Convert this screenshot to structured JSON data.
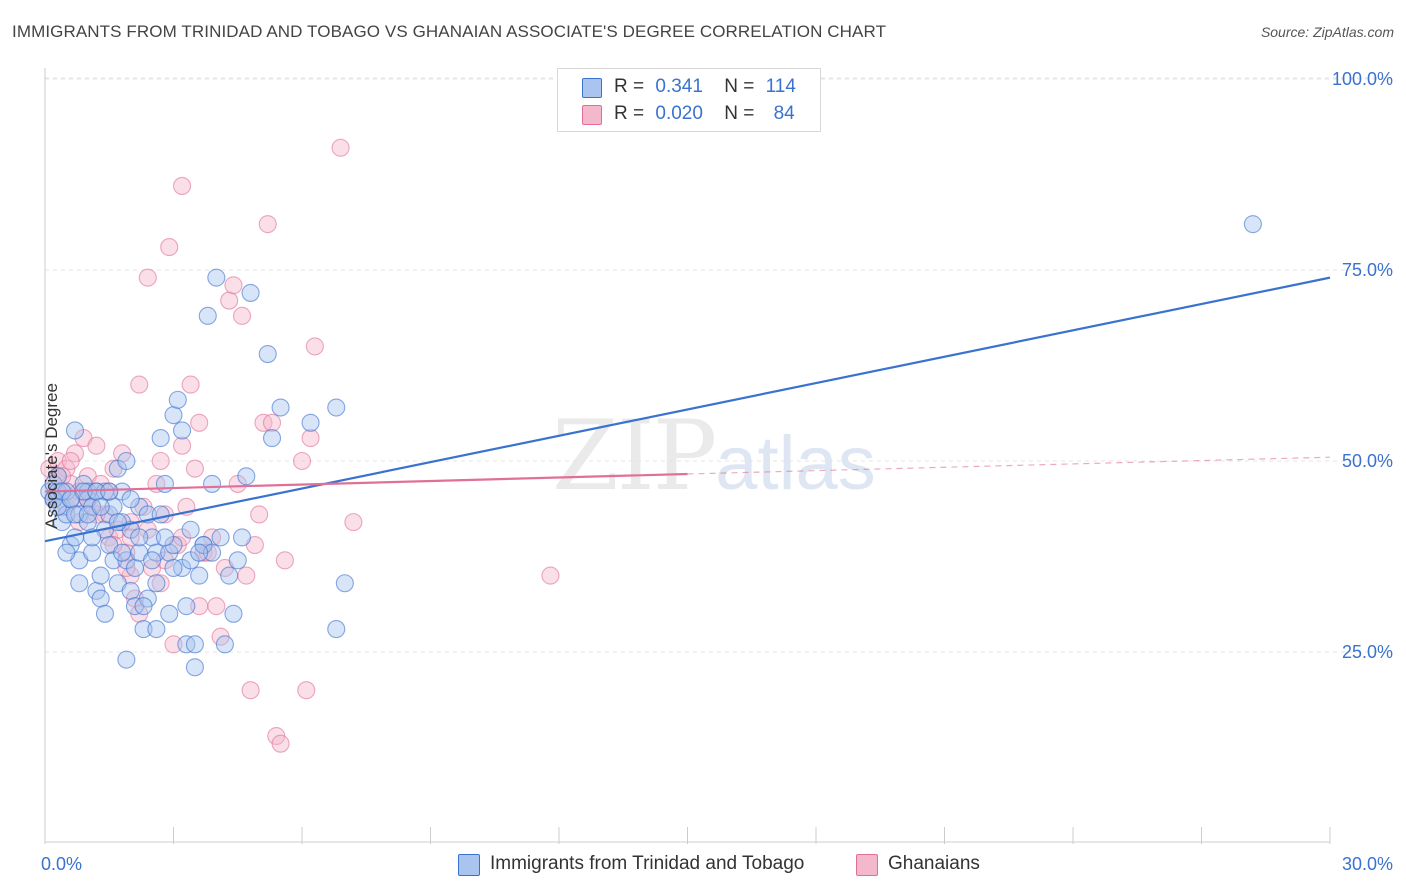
{
  "title": "IMMIGRANTS FROM TRINIDAD AND TOBAGO VS GHANAIAN ASSOCIATE'S DEGREE CORRELATION CHART",
  "source": "Source: ZipAtlas.com",
  "watermark": {
    "zip": "ZIP",
    "atlas": "atlas"
  },
  "colors": {
    "blue": "#3a72d0",
    "blue_fill": "#a9c4ee",
    "pink": "#e07098",
    "pink_fill": "#f4b8cc",
    "grid": "#e4e4e4"
  },
  "legend": {
    "rows": [
      {
        "r_label": "R =",
        "r_value": "0.341",
        "n_label": "N =",
        "n_value": "114"
      },
      {
        "r_label": "R =",
        "r_value": "0.020",
        "n_label": "N =",
        "n_value": "84"
      }
    ]
  },
  "bottom_legend": [
    "Immigrants from Trinidad and Tobago",
    "Ghanaians"
  ],
  "chart_data": {
    "type": "scatter",
    "title": "IMMIGRANTS FROM TRINIDAD AND TOBAGO VS GHANAIAN ASSOCIATE'S DEGREE CORRELATION CHART",
    "xlabel": "",
    "ylabel": "Associate's Degree",
    "xlim": [
      0,
      30
    ],
    "ylim": [
      0,
      105
    ],
    "x_tick_labels": [
      "0.0%",
      "30.0%"
    ],
    "y_ticks": [
      25,
      50,
      75,
      100
    ],
    "y_tick_labels": [
      "25.0%",
      "50.0%",
      "75.0%",
      "100.0%"
    ],
    "grid": true,
    "legend_position": "top-center",
    "series": [
      {
        "name": "Immigrants from Trinidad and Tobago",
        "color": "#3a72d0",
        "R": 0.341,
        "N": 114,
        "trend": [
          [
            0,
            39.5
          ],
          [
            30,
            74
          ]
        ],
        "points": [
          [
            0.1,
            46
          ],
          [
            0.2,
            45
          ],
          [
            0.2,
            47
          ],
          [
            0.3,
            46
          ],
          [
            0.3,
            48
          ],
          [
            0.4,
            44
          ],
          [
            0.4,
            42
          ],
          [
            0.5,
            46
          ],
          [
            0.5,
            43
          ],
          [
            0.6,
            45
          ],
          [
            0.6,
            39
          ],
          [
            0.7,
            54
          ],
          [
            0.7,
            40
          ],
          [
            0.8,
            43
          ],
          [
            0.8,
            37
          ],
          [
            0.8,
            34
          ],
          [
            0.9,
            47
          ],
          [
            1.0,
            46
          ],
          [
            1.0,
            45
          ],
          [
            1.0,
            42
          ],
          [
            1.1,
            44
          ],
          [
            1.1,
            38
          ],
          [
            1.2,
            33
          ],
          [
            1.2,
            46
          ],
          [
            1.3,
            35
          ],
          [
            1.3,
            32
          ],
          [
            1.4,
            46
          ],
          [
            1.4,
            41
          ],
          [
            1.5,
            43
          ],
          [
            1.5,
            39
          ],
          [
            1.6,
            44
          ],
          [
            1.6,
            37
          ],
          [
            1.7,
            49
          ],
          [
            1.7,
            34
          ],
          [
            1.8,
            46
          ],
          [
            1.8,
            42
          ],
          [
            1.9,
            50
          ],
          [
            1.9,
            37
          ],
          [
            1.9,
            24
          ],
          [
            2.0,
            33
          ],
          [
            2.0,
            41
          ],
          [
            2.1,
            36
          ],
          [
            2.1,
            31
          ],
          [
            2.2,
            38
          ],
          [
            2.2,
            44
          ],
          [
            2.3,
            28
          ],
          [
            2.4,
            43
          ],
          [
            2.4,
            32
          ],
          [
            2.5,
            40
          ],
          [
            2.6,
            38
          ],
          [
            2.6,
            28
          ],
          [
            2.7,
            43
          ],
          [
            2.7,
            53
          ],
          [
            2.8,
            47
          ],
          [
            2.9,
            38
          ],
          [
            2.9,
            30
          ],
          [
            3.0,
            39
          ],
          [
            3.0,
            56
          ],
          [
            3.1,
            58
          ],
          [
            3.2,
            54
          ],
          [
            3.2,
            36
          ],
          [
            3.3,
            26
          ],
          [
            3.3,
            31
          ],
          [
            3.4,
            41
          ],
          [
            3.5,
            26
          ],
          [
            3.5,
            23
          ],
          [
            3.6,
            35
          ],
          [
            3.7,
            39
          ],
          [
            3.7,
            39
          ],
          [
            3.8,
            69
          ],
          [
            3.9,
            47
          ],
          [
            3.9,
            38
          ],
          [
            4.0,
            74
          ],
          [
            4.1,
            40
          ],
          [
            4.2,
            26
          ],
          [
            4.3,
            35
          ],
          [
            4.4,
            30
          ],
          [
            4.5,
            37
          ],
          [
            4.6,
            40
          ],
          [
            4.7,
            48
          ],
          [
            4.8,
            72
          ],
          [
            5.2,
            64
          ],
          [
            5.3,
            53
          ],
          [
            5.5,
            57
          ],
          [
            6.2,
            55
          ],
          [
            6.8,
            57
          ],
          [
            6.8,
            28
          ],
          [
            7.0,
            34
          ],
          [
            28.2,
            81
          ],
          [
            0.2,
            45
          ],
          [
            0.3,
            44
          ],
          [
            0.4,
            46
          ],
          [
            0.6,
            45
          ],
          [
            0.7,
            43
          ],
          [
            0.9,
            46
          ],
          [
            1.0,
            43
          ],
          [
            1.2,
            46
          ],
          [
            1.3,
            44
          ],
          [
            1.5,
            46
          ],
          [
            1.7,
            42
          ],
          [
            1.8,
            38
          ],
          [
            2.0,
            45
          ],
          [
            2.2,
            40
          ],
          [
            2.3,
            31
          ],
          [
            2.5,
            37
          ],
          [
            2.8,
            40
          ],
          [
            3.0,
            36
          ],
          [
            3.4,
            37
          ],
          [
            3.6,
            38
          ],
          [
            1.1,
            40
          ],
          [
            1.4,
            30
          ],
          [
            2.6,
            34
          ],
          [
            0.5,
            38
          ]
        ]
      },
      {
        "name": "Ghanaians",
        "color": "#e07098",
        "R": 0.02,
        "N": 84,
        "trend": [
          [
            0,
            46
          ],
          [
            15,
            48.3
          ]
        ],
        "trend_dashed": [
          [
            15,
            48.3
          ],
          [
            30,
            50.5
          ]
        ],
        "points": [
          [
            0.1,
            49
          ],
          [
            0.2,
            47
          ],
          [
            0.2,
            45
          ],
          [
            0.3,
            48
          ],
          [
            0.3,
            50
          ],
          [
            0.4,
            46
          ],
          [
            0.5,
            49
          ],
          [
            0.5,
            44
          ],
          [
            0.6,
            47
          ],
          [
            0.7,
            45
          ],
          [
            0.7,
            51
          ],
          [
            0.8,
            42
          ],
          [
            0.9,
            53
          ],
          [
            1.0,
            48
          ],
          [
            1.0,
            45
          ],
          [
            1.1,
            44
          ],
          [
            1.2,
            52
          ],
          [
            1.3,
            47
          ],
          [
            1.4,
            43
          ],
          [
            1.5,
            40
          ],
          [
            1.5,
            46
          ],
          [
            1.6,
            49
          ],
          [
            1.7,
            41
          ],
          [
            1.8,
            51
          ],
          [
            1.9,
            38
          ],
          [
            2.0,
            42
          ],
          [
            2.0,
            35
          ],
          [
            2.1,
            32
          ],
          [
            2.2,
            30
          ],
          [
            2.2,
            60
          ],
          [
            2.3,
            44
          ],
          [
            2.4,
            74
          ],
          [
            2.5,
            36
          ],
          [
            2.6,
            47
          ],
          [
            2.7,
            50
          ],
          [
            2.7,
            34
          ],
          [
            2.8,
            43
          ],
          [
            2.9,
            78
          ],
          [
            3.0,
            26
          ],
          [
            3.1,
            39
          ],
          [
            3.2,
            52
          ],
          [
            3.2,
            86
          ],
          [
            3.3,
            44
          ],
          [
            3.4,
            60
          ],
          [
            3.5,
            49
          ],
          [
            3.6,
            55
          ],
          [
            3.7,
            38
          ],
          [
            3.8,
            38
          ],
          [
            3.9,
            40
          ],
          [
            4.0,
            31
          ],
          [
            4.1,
            27
          ],
          [
            4.2,
            36
          ],
          [
            4.3,
            71
          ],
          [
            4.4,
            73
          ],
          [
            4.5,
            47
          ],
          [
            4.6,
            69
          ],
          [
            4.7,
            35
          ],
          [
            4.8,
            20
          ],
          [
            4.9,
            39
          ],
          [
            5.0,
            43
          ],
          [
            5.1,
            55
          ],
          [
            5.2,
            81
          ],
          [
            5.3,
            55
          ],
          [
            5.4,
            14
          ],
          [
            5.5,
            13
          ],
          [
            5.6,
            37
          ],
          [
            6.0,
            50
          ],
          [
            6.1,
            20
          ],
          [
            6.2,
            53
          ],
          [
            6.3,
            65
          ],
          [
            6.9,
            91
          ],
          [
            7.2,
            42
          ],
          [
            11.8,
            35
          ],
          [
            0.4,
            48
          ],
          [
            0.8,
            46
          ],
          [
            1.2,
            43
          ],
          [
            1.6,
            39
          ],
          [
            2.0,
            40
          ],
          [
            2.4,
            41
          ],
          [
            2.8,
            37
          ],
          [
            3.2,
            40
          ],
          [
            3.6,
            31
          ],
          [
            0.6,
            50
          ],
          [
            1.9,
            36
          ]
        ]
      }
    ]
  }
}
